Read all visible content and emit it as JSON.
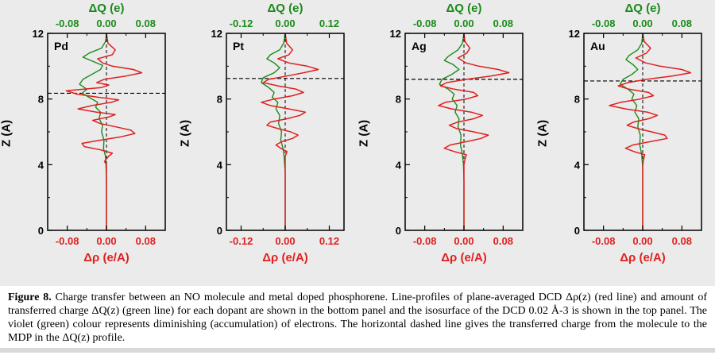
{
  "figure": {
    "caption_label": "Figure 8.",
    "caption_text": " Charge transfer between an NO molecule and metal doped phosphorene. Line-profiles of plane-averaged DCD Δρ(z) (red line) and amount of transferred charge ΔQ(z) (green line) for each dopant are shown in the bottom panel and the isosurface of the DCD 0.02 Å-3 is shown in the top panel. The violet (green) colour represents diminishing (accumulation) of electrons. The horizontal dashed line gives the transferred charge from the molecule to the MDP in the ΔQ(z) profile."
  },
  "colors": {
    "red": "#e02020",
    "green": "#1b8a1b",
    "dash": "#000000"
  },
  "chart_data": {
    "type": "line",
    "legend": "none",
    "grid": false,
    "red_series_name": "Δρ(z) plane-averaged DCD",
    "green_series_name": "ΔQ(z) transferred charge",
    "panels": [
      {
        "label": "Pd",
        "top_axis_title": "ΔQ (e)",
        "bottom_axis_title": "Δρ (e/A)",
        "left_axis_title": "Z (A)",
        "x_tick_labels": [
          "-0.08",
          "0.00",
          "0.08"
        ],
        "x_tick_values": [
          -0.08,
          0,
          0.08
        ],
        "x_minor": [
          -0.04,
          0.04
        ],
        "xmin": -0.12,
        "xmax": 0.12,
        "z_tick_labels": [
          "0",
          "4",
          "8",
          "12"
        ],
        "z_tick_values": [
          0,
          4,
          8,
          12
        ],
        "z_minor": [
          2,
          6,
          10
        ],
        "zmin": 0,
        "zmax": 12,
        "dash_z": 8.35,
        "red": [
          [
            12,
            0
          ],
          [
            11.4,
            0.003
          ],
          [
            11.0,
            0.018
          ],
          [
            10.7,
            0.012
          ],
          [
            10.45,
            -0.018
          ],
          [
            10.2,
            -0.008
          ],
          [
            10.0,
            0.012
          ],
          [
            9.8,
            0.055
          ],
          [
            9.6,
            0.072
          ],
          [
            9.4,
            0.04
          ],
          [
            9.2,
            -0.005
          ],
          [
            9.0,
            -0.02
          ],
          [
            8.85,
            0.005
          ],
          [
            8.7,
            -0.01
          ],
          [
            8.5,
            -0.082
          ],
          [
            8.3,
            -0.06
          ],
          [
            8.1,
            -0.015
          ],
          [
            7.95,
            0.025
          ],
          [
            7.8,
            0.01
          ],
          [
            7.6,
            -0.03
          ],
          [
            7.4,
            -0.058
          ],
          [
            7.2,
            -0.02
          ],
          [
            7.05,
            0.018
          ],
          [
            6.9,
            0.004
          ],
          [
            6.7,
            -0.028
          ],
          [
            6.5,
            -0.012
          ],
          [
            6.3,
            0.02
          ],
          [
            6.1,
            0.05
          ],
          [
            5.9,
            0.058
          ],
          [
            5.7,
            0.03
          ],
          [
            5.5,
            -0.01
          ],
          [
            5.3,
            -0.05
          ],
          [
            5.1,
            -0.045
          ],
          [
            4.9,
            -0.012
          ],
          [
            4.7,
            0.012
          ],
          [
            4.5,
            0.004
          ],
          [
            4.2,
            -0.004
          ],
          [
            4.0,
            0
          ],
          [
            3.0,
            0
          ],
          [
            0,
            0
          ]
        ],
        "green": [
          [
            12,
            0
          ],
          [
            11.5,
            -0.002
          ],
          [
            11.1,
            -0.01
          ],
          [
            10.8,
            -0.035
          ],
          [
            10.55,
            -0.048
          ],
          [
            10.3,
            -0.028
          ],
          [
            10.05,
            -0.008
          ],
          [
            9.8,
            -0.012
          ],
          [
            9.5,
            -0.03
          ],
          [
            9.2,
            -0.048
          ],
          [
            8.9,
            -0.055
          ],
          [
            8.6,
            -0.04
          ],
          [
            8.35,
            -0.05
          ],
          [
            8.1,
            -0.035
          ],
          [
            7.8,
            -0.018
          ],
          [
            7.5,
            -0.022
          ],
          [
            7.2,
            -0.012
          ],
          [
            6.8,
            -0.015
          ],
          [
            6.4,
            -0.008
          ],
          [
            6.0,
            -0.01
          ],
          [
            5.5,
            -0.005
          ],
          [
            5.0,
            -0.006
          ],
          [
            4.5,
            -0.002
          ],
          [
            4.0,
            -0.001
          ],
          [
            3.0,
            0
          ],
          [
            0,
            0
          ]
        ]
      },
      {
        "label": "Pt",
        "top_axis_title": "ΔQ (e)",
        "bottom_axis_title": "Δρ (e/A)",
        "left_axis_title": "Z (A)",
        "x_tick_labels": [
          "-0.12",
          "0.00",
          "0.12"
        ],
        "x_tick_values": [
          -0.12,
          0,
          0.12
        ],
        "x_minor": [
          -0.06,
          0.06
        ],
        "xmin": -0.16,
        "xmax": 0.16,
        "z_tick_labels": [
          "0",
          "4",
          "8",
          "12"
        ],
        "z_tick_values": [
          0,
          4,
          8,
          12
        ],
        "z_minor": [
          2,
          6,
          10
        ],
        "zmin": 0,
        "zmax": 12,
        "dash_z": 9.25,
        "red": [
          [
            12,
            0
          ],
          [
            11.4,
            0.004
          ],
          [
            11.0,
            0.02
          ],
          [
            10.7,
            0.01
          ],
          [
            10.45,
            -0.02
          ],
          [
            10.2,
            0.01
          ],
          [
            10.0,
            0.06
          ],
          [
            9.8,
            0.09
          ],
          [
            9.6,
            0.05
          ],
          [
            9.4,
            0.005
          ],
          [
            9.2,
            -0.045
          ],
          [
            9.0,
            -0.06
          ],
          [
            8.8,
            -0.02
          ],
          [
            8.6,
            0.03
          ],
          [
            8.4,
            0.05
          ],
          [
            8.2,
            0.02
          ],
          [
            8.0,
            -0.03
          ],
          [
            7.8,
            -0.065
          ],
          [
            7.6,
            -0.04
          ],
          [
            7.4,
            0.01
          ],
          [
            7.2,
            0.055
          ],
          [
            7.0,
            0.04
          ],
          [
            6.8,
            0.005
          ],
          [
            6.6,
            -0.04
          ],
          [
            6.4,
            -0.05
          ],
          [
            6.2,
            -0.02
          ],
          [
            6.0,
            0.015
          ],
          [
            5.8,
            0.035
          ],
          [
            5.6,
            0.02
          ],
          [
            5.4,
            -0.01
          ],
          [
            5.2,
            -0.025
          ],
          [
            5.0,
            -0.012
          ],
          [
            4.8,
            0.005
          ],
          [
            4.5,
            0
          ],
          [
            3.0,
            0
          ],
          [
            0,
            0
          ]
        ],
        "green": [
          [
            12,
            0
          ],
          [
            11.4,
            -0.004
          ],
          [
            11.0,
            -0.015
          ],
          [
            10.7,
            -0.04
          ],
          [
            10.45,
            -0.05
          ],
          [
            10.2,
            -0.03
          ],
          [
            9.9,
            -0.015
          ],
          [
            9.6,
            -0.03
          ],
          [
            9.3,
            -0.06
          ],
          [
            9.0,
            -0.065
          ],
          [
            8.7,
            -0.045
          ],
          [
            8.4,
            -0.03
          ],
          [
            8.1,
            -0.035
          ],
          [
            7.8,
            -0.02
          ],
          [
            7.4,
            -0.025
          ],
          [
            7.0,
            -0.015
          ],
          [
            6.5,
            -0.018
          ],
          [
            6.0,
            -0.01
          ],
          [
            5.5,
            -0.012
          ],
          [
            5.0,
            -0.006
          ],
          [
            4.5,
            -0.003
          ],
          [
            3.5,
            0
          ],
          [
            0,
            0
          ]
        ]
      },
      {
        "label": "Ag",
        "top_axis_title": "ΔQ (e)",
        "bottom_axis_title": "Δρ (e/A)",
        "left_axis_title": "Z (A)",
        "x_tick_labels": [
          "-0.08",
          "0.00",
          "0.08"
        ],
        "x_tick_values": [
          -0.08,
          0,
          0.08
        ],
        "x_minor": [
          -0.04,
          0.04
        ],
        "xmin": -0.12,
        "xmax": 0.12,
        "z_tick_labels": [
          "0",
          "4",
          "8",
          "12"
        ],
        "z_tick_values": [
          0,
          4,
          8,
          12
        ],
        "z_minor": [
          2,
          6,
          10
        ],
        "zmin": 0,
        "zmax": 12,
        "dash_z": 9.2,
        "red": [
          [
            12,
            0
          ],
          [
            11.5,
            0.002
          ],
          [
            11.1,
            0.012
          ],
          [
            10.8,
            0.006
          ],
          [
            10.5,
            -0.012
          ],
          [
            10.2,
            0.004
          ],
          [
            10.0,
            0.03
          ],
          [
            9.8,
            0.07
          ],
          [
            9.6,
            0.092
          ],
          [
            9.4,
            0.055
          ],
          [
            9.2,
            0.005
          ],
          [
            9.0,
            -0.035
          ],
          [
            8.8,
            -0.048
          ],
          [
            8.6,
            -0.02
          ],
          [
            8.4,
            0.02
          ],
          [
            8.2,
            0.028
          ],
          [
            8.0,
            0.005
          ],
          [
            7.8,
            -0.038
          ],
          [
            7.6,
            -0.052
          ],
          [
            7.4,
            -0.025
          ],
          [
            7.2,
            0.015
          ],
          [
            7.0,
            0.038
          ],
          [
            6.8,
            0.02
          ],
          [
            6.6,
            -0.012
          ],
          [
            6.4,
            -0.03
          ],
          [
            6.2,
            -0.015
          ],
          [
            6.0,
            0.02
          ],
          [
            5.8,
            0.05
          ],
          [
            5.6,
            0.035
          ],
          [
            5.4,
            0.005
          ],
          [
            5.2,
            -0.028
          ],
          [
            5.0,
            -0.04
          ],
          [
            4.8,
            -0.02
          ],
          [
            4.6,
            0.005
          ],
          [
            4.3,
            0.002
          ],
          [
            4.0,
            0
          ],
          [
            3.0,
            0
          ],
          [
            0,
            0
          ]
        ],
        "green": [
          [
            12,
            0
          ],
          [
            11.4,
            -0.003
          ],
          [
            11.0,
            -0.012
          ],
          [
            10.6,
            -0.032
          ],
          [
            10.35,
            -0.04
          ],
          [
            10.1,
            -0.022
          ],
          [
            9.8,
            -0.01
          ],
          [
            9.5,
            -0.025
          ],
          [
            9.2,
            -0.045
          ],
          [
            8.9,
            -0.05
          ],
          [
            8.6,
            -0.032
          ],
          [
            8.3,
            -0.02
          ],
          [
            8.0,
            -0.024
          ],
          [
            7.6,
            -0.014
          ],
          [
            7.2,
            -0.018
          ],
          [
            6.8,
            -0.01
          ],
          [
            6.3,
            -0.012
          ],
          [
            5.8,
            -0.006
          ],
          [
            5.2,
            -0.007
          ],
          [
            4.6,
            -0.003
          ],
          [
            4.0,
            -0.001
          ],
          [
            3.0,
            0
          ],
          [
            0,
            0
          ]
        ]
      },
      {
        "label": "Au",
        "top_axis_title": "ΔQ (e)",
        "bottom_axis_title": "Δρ (e/A)",
        "left_axis_title": "Z (A)",
        "x_tick_labels": [
          "-0.08",
          "0.00",
          "0.08"
        ],
        "x_tick_values": [
          -0.08,
          0,
          0.08
        ],
        "x_minor": [
          -0.04,
          0.04
        ],
        "xmin": -0.12,
        "xmax": 0.12,
        "z_tick_labels": [
          "0",
          "4",
          "8",
          "12"
        ],
        "z_tick_values": [
          0,
          4,
          8,
          12
        ],
        "z_minor": [
          2,
          6,
          10
        ],
        "zmin": 0,
        "zmax": 12,
        "dash_z": 9.1,
        "red": [
          [
            12,
            0
          ],
          [
            11.5,
            0.003
          ],
          [
            11.1,
            0.016
          ],
          [
            10.8,
            0.008
          ],
          [
            10.5,
            -0.014
          ],
          [
            10.2,
            0.006
          ],
          [
            10.0,
            0.035
          ],
          [
            9.8,
            0.08
          ],
          [
            9.6,
            0.098
          ],
          [
            9.4,
            0.06
          ],
          [
            9.2,
            0.008
          ],
          [
            9.0,
            -0.03
          ],
          [
            8.8,
            -0.05
          ],
          [
            8.6,
            -0.028
          ],
          [
            8.4,
            0.012
          ],
          [
            8.2,
            0.022
          ],
          [
            8.0,
            -0.005
          ],
          [
            7.8,
            -0.045
          ],
          [
            7.6,
            -0.068
          ],
          [
            7.4,
            -0.035
          ],
          [
            7.2,
            0.01
          ],
          [
            7.0,
            0.03
          ],
          [
            6.8,
            0.012
          ],
          [
            6.6,
            -0.018
          ],
          [
            6.4,
            -0.032
          ],
          [
            6.2,
            -0.01
          ],
          [
            6.0,
            0.018
          ],
          [
            5.8,
            0.045
          ],
          [
            5.6,
            0.05
          ],
          [
            5.4,
            0.015
          ],
          [
            5.2,
            -0.02
          ],
          [
            5.0,
            -0.035
          ],
          [
            4.8,
            -0.018
          ],
          [
            4.6,
            0.004
          ],
          [
            4.2,
            0.001
          ],
          [
            3.9,
            0
          ],
          [
            0,
            0
          ]
        ],
        "green": [
          [
            12,
            0
          ],
          [
            11.4,
            -0.002
          ],
          [
            11.0,
            -0.01
          ],
          [
            10.65,
            -0.028
          ],
          [
            10.4,
            -0.034
          ],
          [
            10.1,
            -0.02
          ],
          [
            9.8,
            -0.01
          ],
          [
            9.5,
            -0.022
          ],
          [
            9.2,
            -0.04
          ],
          [
            8.9,
            -0.046
          ],
          [
            8.6,
            -0.03
          ],
          [
            8.3,
            -0.018
          ],
          [
            8.0,
            -0.022
          ],
          [
            7.6,
            -0.012
          ],
          [
            7.2,
            -0.016
          ],
          [
            6.8,
            -0.008
          ],
          [
            6.3,
            -0.01
          ],
          [
            5.8,
            -0.005
          ],
          [
            5.2,
            -0.006
          ],
          [
            4.6,
            -0.002
          ],
          [
            3.8,
            0
          ],
          [
            0,
            0
          ]
        ]
      }
    ]
  }
}
